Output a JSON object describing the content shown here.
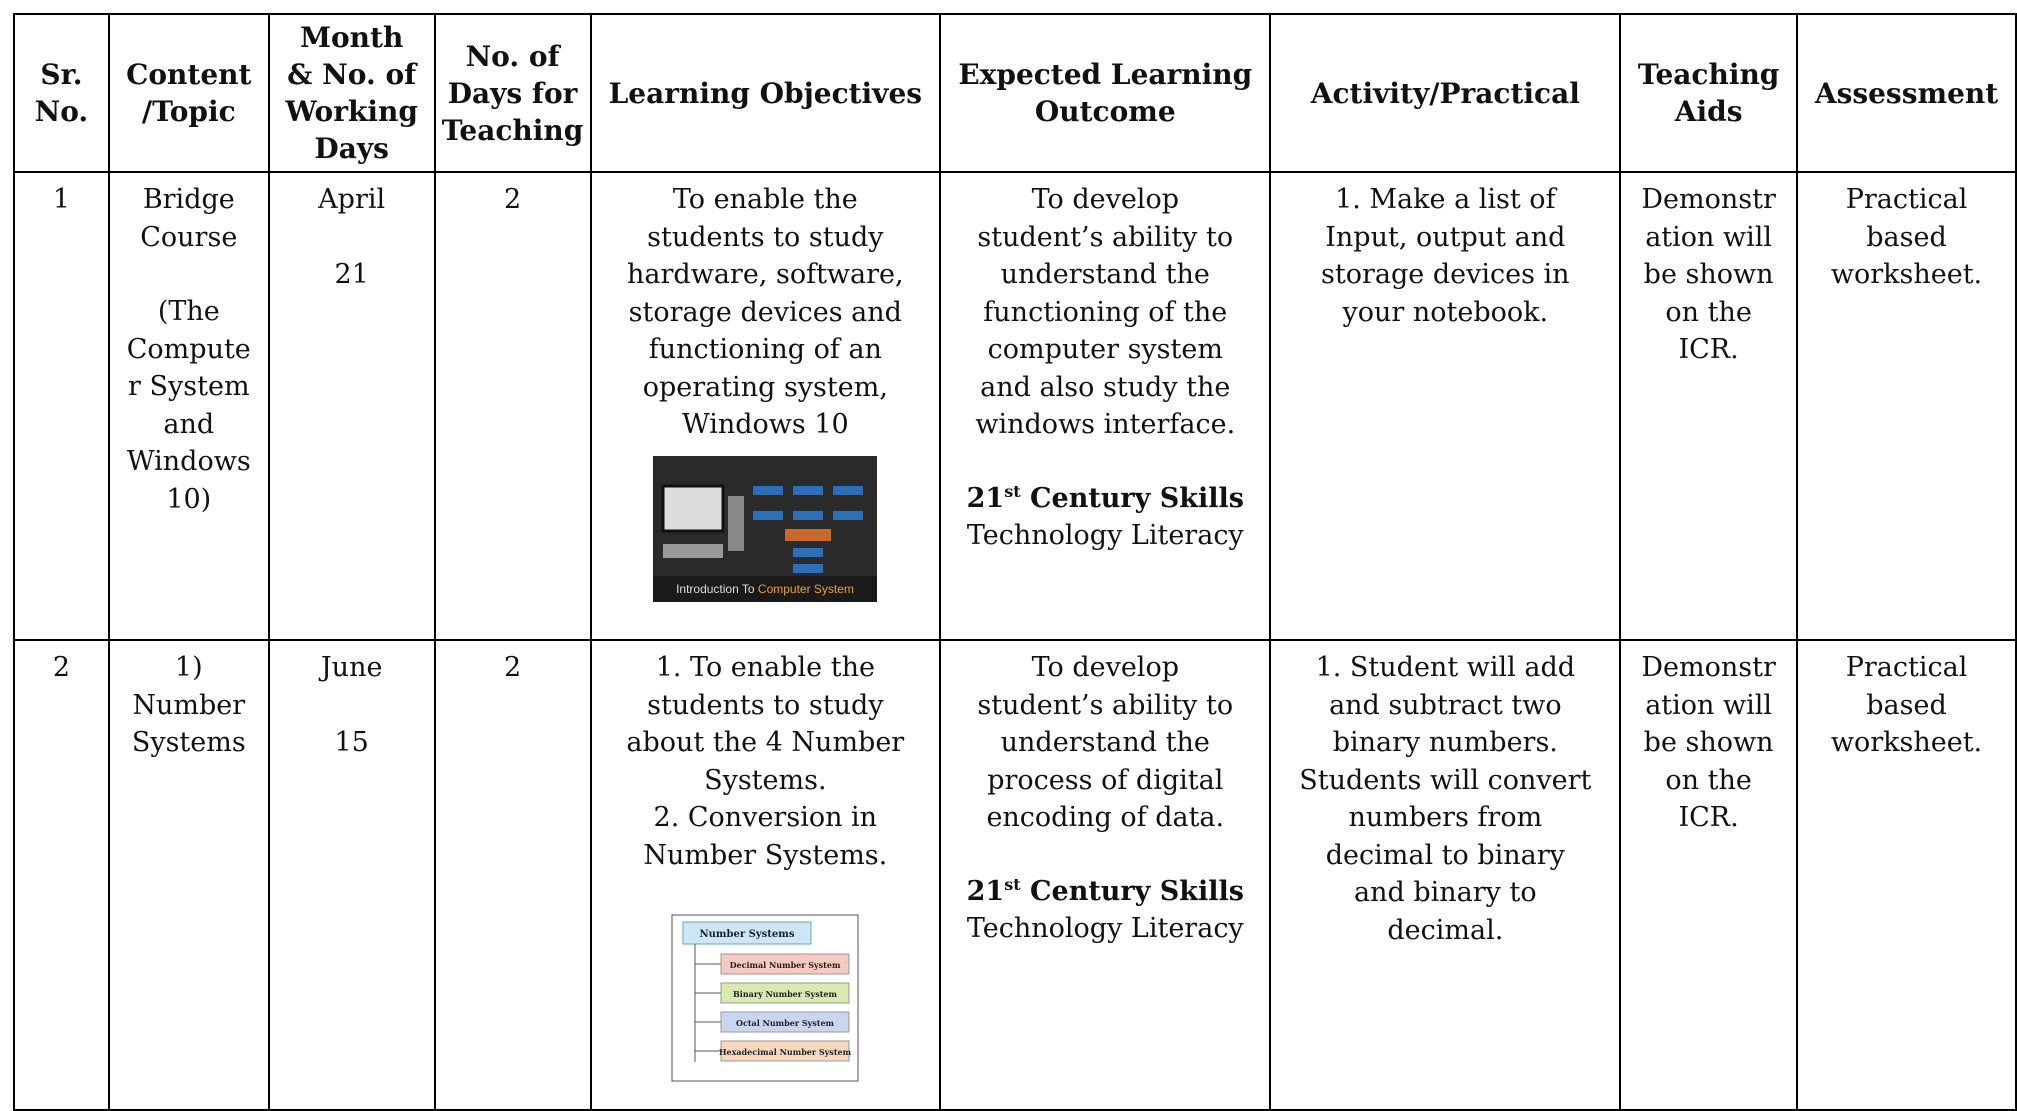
{
  "table": {
    "headers": [
      [
        "Sr.",
        "No."
      ],
      [
        "Content",
        "/Topic"
      ],
      [
        "Month",
        "& No. of",
        "Working",
        "Days"
      ],
      [
        "No. of",
        "Days for",
        "Teaching"
      ],
      [
        "Learning Objectives"
      ],
      [
        "Expected Learning",
        "Outcome"
      ],
      [
        "Activity/Practical"
      ],
      [
        "Teaching",
        "Aids"
      ],
      [
        "Assessment"
      ]
    ],
    "rows": [
      {
        "cells": [
          [
            [
              "1"
            ]
          ],
          [
            [
              "Bridge",
              "Course"
            ],
            [
              "(The",
              "Compute",
              "r System",
              "and",
              "Windows",
              "10)"
            ]
          ],
          [
            [
              "April"
            ],
            [
              "21"
            ]
          ],
          [
            [
              "2"
            ]
          ],
          [
            [
              "To enable the",
              "students to study",
              "hardware, software,",
              "storage devices and",
              "functioning of an",
              "operating system,",
              "Windows 10"
            ]
          ],
          [
            [
              "To develop",
              "student’s ability to",
              "understand the",
              "functioning of the",
              "computer system",
              "and also study the",
              "windows interface."
            ]
          ],
          [
            [
              "1. Make a list of",
              "Input, output and",
              "storage devices in",
              "your notebook."
            ]
          ],
          [
            [
              "Demonstr",
              "ation will",
              "be shown",
              "on the",
              "ICR."
            ]
          ],
          [
            [
              "Practical",
              "based",
              "worksheet."
            ]
          ]
        ],
        "skills": {
          "num": "21",
          "sup": "st",
          "text": "Century Skills",
          "sub": "Technology Literacy"
        },
        "image": {
          "kind": "computer",
          "caption_a": "Introduction To",
          "caption_b": "Computer System"
        }
      },
      {
        "cells": [
          [
            [
              "2"
            ]
          ],
          [
            [
              "1)",
              "Number",
              "Systems"
            ]
          ],
          [
            [
              "June"
            ],
            [
              "15"
            ]
          ],
          [
            [
              "2"
            ]
          ],
          [
            [
              "1. To enable the",
              "students to study",
              "about the 4 Number",
              "Systems.",
              "2. Conversion in",
              "Number Systems."
            ]
          ],
          [
            [
              "To develop",
              "student’s ability to",
              "understand the",
              "process of digital",
              "encoding of data."
            ]
          ],
          [
            [
              "1. Student will add",
              "and subtract two",
              "binary numbers.",
              "Students will convert",
              "numbers from",
              "decimal to binary",
              "and binary to",
              "decimal."
            ]
          ],
          [
            [
              "Demonstr",
              "ation will",
              "be shown",
              "on the",
              "ICR."
            ]
          ],
          [
            [
              "Practical",
              "based",
              "worksheet."
            ]
          ]
        ],
        "skills": {
          "num": "21",
          "sup": "st",
          "text": "Century Skills",
          "sub": "Technology Literacy"
        },
        "image": {
          "kind": "numbers",
          "title": "Number Systems",
          "items": [
            "Decimal Number System",
            "Binary Number System",
            "Octal Number System",
            "Hexadecimal Number System"
          ]
        }
      }
    ]
  }
}
